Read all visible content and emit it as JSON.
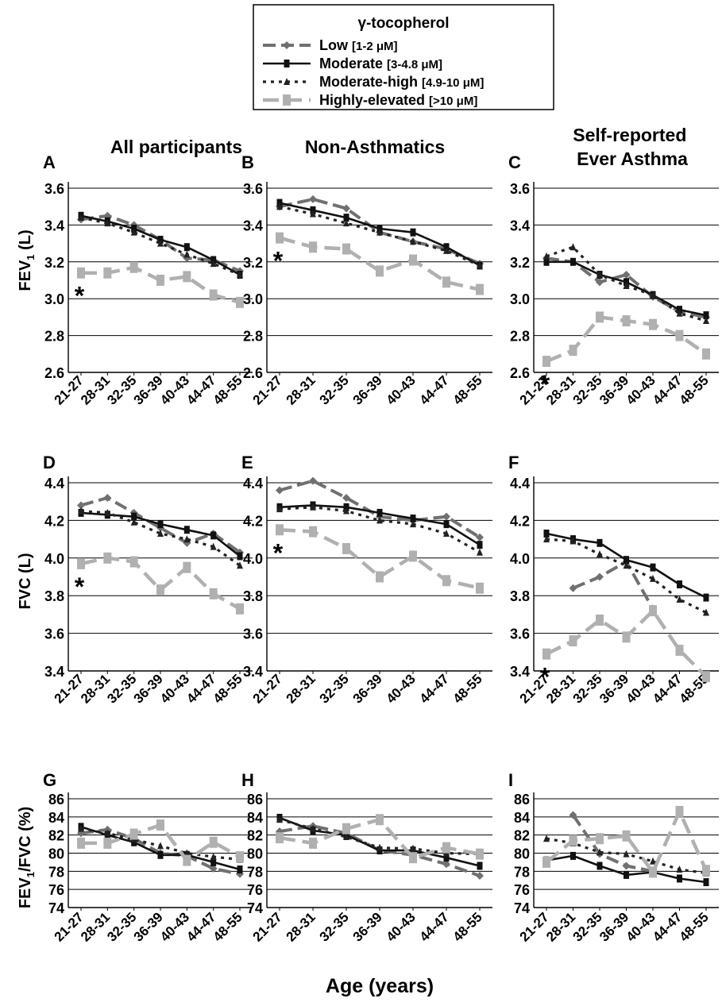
{
  "legend": {
    "title": "γ-tocopherol",
    "entries": [
      {
        "name": "Low",
        "range": "[1-2 μM]"
      },
      {
        "name": "Moderate",
        "range": "[3-4.8 μM]"
      },
      {
        "name": "Moderate-high",
        "range": "[4.9-10 μM]"
      },
      {
        "name": "Highly-elevated",
        "range": "[>10 μM]"
      }
    ]
  },
  "column_titles": [
    "All participants",
    "Non-Asthmatics",
    "Self-reported Ever Asthma"
  ],
  "row_ylabels": [
    "FEV1 (L)",
    "FVC (L)",
    "FEV1/FVC (%)"
  ],
  "xlabel": "Age (years)",
  "colors": {
    "low": "#707070",
    "moderate": "#111111",
    "moderate_high": "#222222",
    "highly_elevated": "#b0b0b0"
  },
  "chart_data": [
    {
      "type": "line",
      "panel": "A",
      "title": "All participants",
      "ylabel": "FEV1 (L)",
      "categories": [
        "21-27",
        "28-31",
        "32-35",
        "36-39",
        "40-43",
        "44-47",
        "48-55"
      ],
      "ylim": [
        2.6,
        3.6
      ],
      "yticks": [
        "2.6",
        "2.8",
        "3.0",
        "3.2",
        "3.4",
        "3.6"
      ],
      "grid": true,
      "significance_marker": "*",
      "series": [
        {
          "name": "Low",
          "values": [
            3.43,
            3.45,
            3.4,
            3.32,
            3.22,
            3.21,
            3.15
          ]
        },
        {
          "name": "Moderate",
          "values": [
            3.45,
            3.42,
            3.38,
            3.32,
            3.28,
            3.21,
            3.13
          ]
        },
        {
          "name": "Moderate-high",
          "values": [
            3.44,
            3.41,
            3.36,
            3.3,
            3.24,
            3.19,
            3.13
          ]
        },
        {
          "name": "Highly-elevated",
          "values": [
            3.14,
            3.14,
            3.17,
            3.1,
            3.12,
            3.02,
            2.98
          ]
        }
      ]
    },
    {
      "type": "line",
      "panel": "B",
      "title": "Non-Asthmatics",
      "ylabel": "",
      "categories": [
        "21-27",
        "28-31",
        "32-35",
        "36-39",
        "40-43",
        "44-47",
        "48-55"
      ],
      "ylim": [
        2.6,
        3.6
      ],
      "yticks": [
        "2.6",
        "2.8",
        "3.0",
        "3.2",
        "3.4",
        "3.6"
      ],
      "grid": true,
      "significance_marker": "*",
      "series": [
        {
          "name": "Low",
          "values": [
            3.5,
            3.54,
            3.49,
            3.36,
            3.31,
            3.27,
            3.19
          ]
        },
        {
          "name": "Moderate",
          "values": [
            3.52,
            3.48,
            3.44,
            3.38,
            3.36,
            3.28,
            3.18
          ]
        },
        {
          "name": "Moderate-high",
          "values": [
            3.5,
            3.46,
            3.41,
            3.36,
            3.31,
            3.26,
            3.18
          ]
        },
        {
          "name": "Highly-elevated",
          "values": [
            3.33,
            3.28,
            3.27,
            3.15,
            3.21,
            3.09,
            3.05
          ]
        }
      ]
    },
    {
      "type": "line",
      "panel": "C",
      "title": "Self-reported Ever Asthma",
      "ylabel": "",
      "categories": [
        "21-27",
        "28-31",
        "32-35",
        "36-39",
        "40-43",
        "44-47",
        "48-55"
      ],
      "ylim": [
        2.6,
        3.6
      ],
      "yticks": [
        "2.6",
        "2.8",
        "3.0",
        "3.2",
        "3.4",
        "3.6"
      ],
      "grid": true,
      "significance_marker": "*",
      "series": [
        {
          "name": "Low",
          "values": [
            3.22,
            3.2,
            3.09,
            3.13,
            3.01,
            2.93,
            2.9
          ]
        },
        {
          "name": "Moderate",
          "values": [
            3.2,
            3.2,
            3.13,
            3.09,
            3.02,
            2.94,
            2.91
          ]
        },
        {
          "name": "Moderate-high",
          "values": [
            3.23,
            3.28,
            3.13,
            3.07,
            3.02,
            2.92,
            2.88
          ]
        },
        {
          "name": "Highly-elevated",
          "values": [
            2.66,
            2.72,
            2.9,
            2.88,
            2.86,
            2.8,
            2.7
          ]
        }
      ]
    },
    {
      "type": "line",
      "panel": "D",
      "title": "",
      "ylabel": "FVC (L)",
      "categories": [
        "21-27",
        "28-31",
        "32-35",
        "36-39",
        "40-43",
        "44-47",
        "48-55"
      ],
      "ylim": [
        3.4,
        4.4
      ],
      "yticks": [
        "3.4",
        "3.6",
        "3.8",
        "4.0",
        "4.2",
        "4.4"
      ],
      "grid": true,
      "significance_marker": "*",
      "series": [
        {
          "name": "Low",
          "values": [
            4.28,
            4.32,
            4.24,
            4.16,
            4.08,
            4.13,
            4.03
          ]
        },
        {
          "name": "Moderate",
          "values": [
            4.24,
            4.23,
            4.22,
            4.18,
            4.15,
            4.12,
            4.01
          ]
        },
        {
          "name": "Moderate-high",
          "values": [
            4.25,
            4.24,
            4.19,
            4.13,
            4.1,
            4.06,
            3.96
          ]
        },
        {
          "name": "Highly-elevated",
          "values": [
            3.97,
            4.0,
            3.98,
            3.83,
            3.95,
            3.81,
            3.73
          ]
        }
      ]
    },
    {
      "type": "line",
      "panel": "E",
      "title": "",
      "ylabel": "",
      "categories": [
        "21-27",
        "28-31",
        "32-35",
        "36-39",
        "40-43",
        "44-47",
        "48-55"
      ],
      "ylim": [
        3.4,
        4.4
      ],
      "yticks": [
        "3.4",
        "3.6",
        "3.8",
        "4.0",
        "4.2",
        "4.4"
      ],
      "grid": true,
      "significance_marker": "*",
      "series": [
        {
          "name": "Low",
          "values": [
            4.36,
            4.41,
            4.32,
            4.22,
            4.2,
            4.22,
            4.11
          ]
        },
        {
          "name": "Moderate",
          "values": [
            4.27,
            4.28,
            4.27,
            4.24,
            4.21,
            4.18,
            4.07
          ]
        },
        {
          "name": "Moderate-high",
          "values": [
            4.26,
            4.27,
            4.25,
            4.2,
            4.18,
            4.13,
            4.03
          ]
        },
        {
          "name": "Highly-elevated",
          "values": [
            4.15,
            4.14,
            4.05,
            3.9,
            4.01,
            3.88,
            3.84
          ]
        }
      ]
    },
    {
      "type": "line",
      "panel": "F",
      "title": "",
      "ylabel": "",
      "categories": [
        "21-27",
        "28-31",
        "32-35",
        "36-39",
        "40-43",
        "44-47",
        "48-55"
      ],
      "ylim": [
        3.4,
        4.4
      ],
      "yticks": [
        "3.4",
        "3.6",
        "3.8",
        "4.0",
        "4.2",
        "4.4"
      ],
      "grid": true,
      "significance_marker": "*",
      "series": [
        {
          "name": "Low",
          "values": [
            null,
            3.84,
            3.9,
            3.98,
            3.73,
            null,
            null
          ]
        },
        {
          "name": "Moderate",
          "values": [
            4.13,
            4.1,
            4.08,
            3.99,
            3.95,
            3.86,
            3.79
          ]
        },
        {
          "name": "Moderate-high",
          "values": [
            4.1,
            4.09,
            4.02,
            3.96,
            3.89,
            3.78,
            3.71
          ]
        },
        {
          "name": "Highly-elevated",
          "values": [
            3.49,
            3.56,
            3.67,
            3.58,
            3.72,
            3.51,
            3.37
          ]
        }
      ]
    },
    {
      "type": "line",
      "panel": "G",
      "title": "",
      "ylabel": "FEV1/FVC (%)",
      "categories": [
        "21-27",
        "28-31",
        "32-35",
        "36-39",
        "40-43",
        "44-47",
        "48-55"
      ],
      "ylim": [
        74,
        86
      ],
      "yticks": [
        "74",
        "76",
        "78",
        "80",
        "82",
        "84",
        "86"
      ],
      "grid": true,
      "series": [
        {
          "name": "Low",
          "values": [
            82.2,
            82.6,
            81.6,
            80.0,
            79.7,
            78.3,
            77.7
          ]
        },
        {
          "name": "Moderate",
          "values": [
            82.9,
            82.0,
            81.2,
            79.8,
            79.8,
            79.0,
            78.2
          ]
        },
        {
          "name": "Moderate-high",
          "values": [
            82.7,
            82.2,
            81.5,
            80.8,
            80.0,
            79.6,
            79.3
          ]
        },
        {
          "name": "Highly-elevated",
          "values": [
            81.1,
            81.1,
            82.1,
            83.1,
            79.2,
            81.2,
            79.6
          ]
        }
      ]
    },
    {
      "type": "line",
      "panel": "H",
      "title": "",
      "ylabel": "",
      "categories": [
        "21-27",
        "28-31",
        "32-35",
        "36-39",
        "40-43",
        "44-47",
        "48-55"
      ],
      "ylim": [
        74,
        86
      ],
      "yticks": [
        "74",
        "76",
        "78",
        "80",
        "82",
        "84",
        "86"
      ],
      "grid": true,
      "series": [
        {
          "name": "Low",
          "values": [
            82.4,
            83.0,
            82.2,
            80.3,
            79.8,
            78.8,
            77.5
          ]
        },
        {
          "name": "Moderate",
          "values": [
            83.9,
            82.5,
            82.0,
            80.3,
            80.3,
            79.5,
            78.6
          ]
        },
        {
          "name": "Moderate-high",
          "values": [
            83.7,
            82.7,
            81.8,
            80.6,
            80.5,
            80.0,
            79.9
          ]
        },
        {
          "name": "Highly-elevated",
          "values": [
            81.7,
            81.1,
            82.7,
            83.7,
            79.5,
            80.6,
            79.9
          ]
        }
      ]
    },
    {
      "type": "line",
      "panel": "I",
      "title": "",
      "ylabel": "",
      "categories": [
        "21-27",
        "28-31",
        "32-35",
        "36-39",
        "40-43",
        "44-47",
        "48-55"
      ],
      "ylim": [
        74,
        86
      ],
      "yticks": [
        "74",
        "76",
        "78",
        "80",
        "82",
        "84",
        "86"
      ],
      "grid": true,
      "series": [
        {
          "name": "Low",
          "values": [
            null,
            84.2,
            79.9,
            78.6,
            78.0,
            null,
            null
          ]
        },
        {
          "name": "Moderate",
          "values": [
            79.2,
            79.7,
            78.6,
            77.6,
            77.9,
            77.2,
            76.8
          ]
        },
        {
          "name": "Moderate-high",
          "values": [
            81.6,
            81.1,
            80.1,
            79.9,
            79.1,
            78.2,
            77.8
          ]
        },
        {
          "name": "Highly-elevated",
          "values": [
            79.0,
            81.4,
            81.6,
            81.9,
            77.9,
            84.6,
            78.1
          ]
        }
      ]
    }
  ]
}
